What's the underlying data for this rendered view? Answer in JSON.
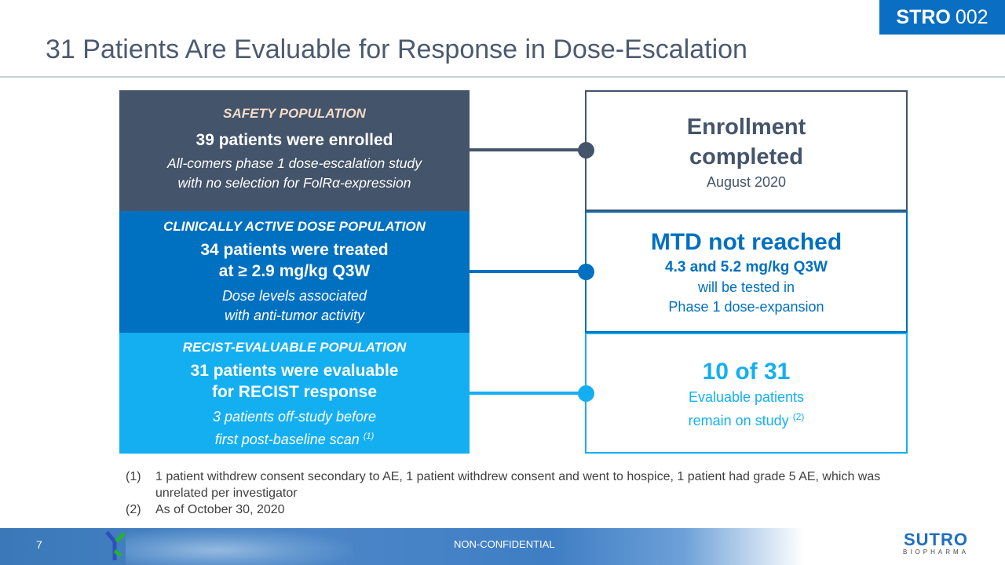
{
  "badge": {
    "bold": "STRO",
    "light": "002"
  },
  "title": "31 Patients Are Evaluable for Response in Dose-Escalation",
  "colors": {
    "safety": "#44546a",
    "clinical": "#0070c0",
    "recist": "#14aff1"
  },
  "left": [
    {
      "header": "SAFETY POPULATION",
      "main": [
        "39 patients were enrolled"
      ],
      "sub": [
        "All-comers phase 1 dose-escalation study",
        "with no selection for FolRα-expression"
      ]
    },
    {
      "header": "CLINICALLY ACTIVE DOSE POPULATION",
      "main": [
        "34 patients were treated",
        "at ≥ 2.9 mg/kg Q3W"
      ],
      "sub": [
        "Dose levels associated",
        "with anti-tumor activity"
      ]
    },
    {
      "header": "RECIST-EVALUABLE POPULATION",
      "main": [
        "31 patients were evaluable",
        "for RECIST response"
      ],
      "sub": [
        "3 patients off-study before",
        "first post-baseline scan"
      ],
      "sup": "(1)"
    }
  ],
  "right": [
    {
      "title": [
        "Enrollment",
        "completed"
      ],
      "lines": [
        "August 2020"
      ]
    },
    {
      "title": [
        "MTD not reached"
      ],
      "bold_line": "4.3 and 5.2 mg/kg Q3W",
      "lines": [
        "will be tested in",
        "Phase 1 dose-expansion"
      ]
    },
    {
      "title": [
        "10 of 31"
      ],
      "lines": [
        "Evaluable patients",
        "remain on study"
      ],
      "sup": "(2)"
    }
  ],
  "footnotes": [
    {
      "num": "(1)",
      "text": "1 patient withdrew consent secondary to AE, 1 patient withdrew consent and went to hospice, 1 patient had grade 5 AE, which was unrelated per investigator"
    },
    {
      "num": "(2)",
      "text": "As of October 30, 2020"
    }
  ],
  "footer": {
    "page": "7",
    "label": "NON-CONFIDENTIAL",
    "logo_main": "SUTRO",
    "logo_sub": "BIOPHARMA"
  }
}
